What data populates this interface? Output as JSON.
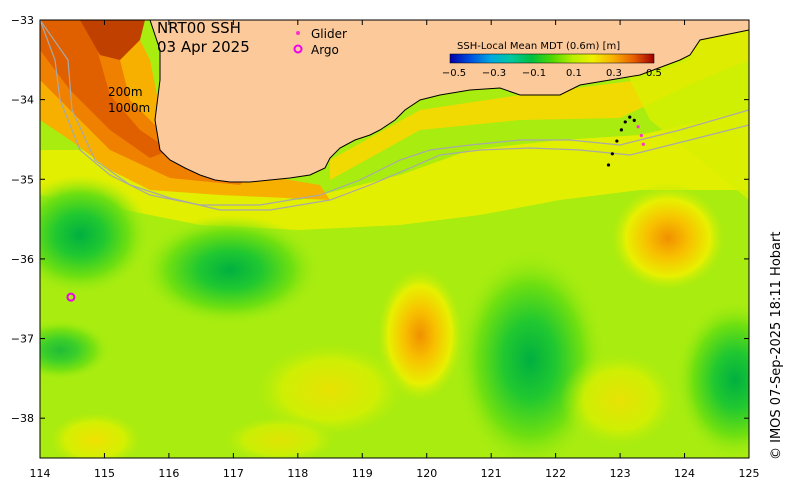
{
  "title": {
    "product": "NRT00 SSH",
    "date": "03 Apr 2025"
  },
  "legend": {
    "glider_label": "Glider",
    "argo_label": "Argo",
    "glider_color": "#ff33cc",
    "argo_color": "#ee00ee"
  },
  "colorbar": {
    "title": "SSH-Local Mean MDT (0.6m) [m]",
    "ticks": [
      "−0.5",
      "−0.3",
      "−0.1",
      "0.1",
      "0.3",
      "0.5"
    ],
    "tick_values": [
      -0.5,
      -0.3,
      -0.1,
      0.1,
      0.3,
      0.5
    ],
    "colors": [
      "#0000aa",
      "#0044dd",
      "#00a0e0",
      "#00c8a0",
      "#00c000",
      "#70e000",
      "#d8f000",
      "#f8d800",
      "#f89000",
      "#d84000",
      "#a00000"
    ]
  },
  "depth_labels": {
    "c200": "200m",
    "c1000": "1000m"
  },
  "axes": {
    "x_range": [
      114,
      125
    ],
    "y_range": [
      -38.5,
      -33
    ],
    "x_ticks": [
      "114",
      "115",
      "116",
      "117",
      "118",
      "119",
      "120",
      "121",
      "122",
      "123",
      "124",
      "125"
    ],
    "x_tick_values": [
      114,
      115,
      116,
      117,
      118,
      119,
      120,
      121,
      122,
      123,
      124,
      125
    ],
    "y_ticks": [
      "−33",
      "−34",
      "−35",
      "−36",
      "−37",
      "−38"
    ],
    "y_tick_values": [
      -33,
      -34,
      -35,
      -36,
      -37,
      -38
    ]
  },
  "colors": {
    "land": "#fbc99a",
    "coast": "#000000",
    "isobath": "#a8a8a8",
    "bg_field": "#a8ec10"
  },
  "credit": "© IMOS 07-Sep-2025 18:11 Hobart",
  "argo_floats_deg": [
    [
      114.48,
      -36.48
    ]
  ],
  "glider_track_deg": [
    [
      122.82,
      -34.82
    ],
    [
      122.88,
      -34.68
    ],
    [
      122.95,
      -34.52
    ],
    [
      123.02,
      -34.38
    ],
    [
      123.08,
      -34.28
    ],
    [
      123.15,
      -34.22
    ],
    [
      123.22,
      -34.26
    ],
    [
      123.28,
      -34.34
    ],
    [
      123.33,
      -34.45
    ],
    [
      123.36,
      -34.56
    ]
  ]
}
